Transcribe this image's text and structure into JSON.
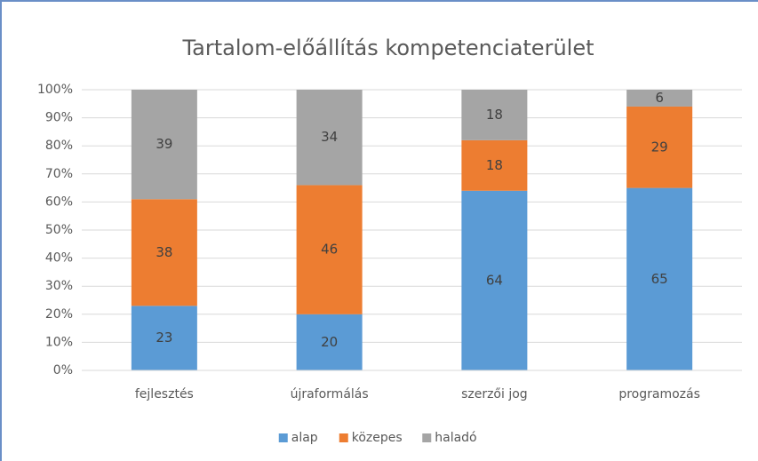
{
  "chart_data": {
    "type": "stacked_bar",
    "title": "Tartalom-előállítás kompetenciaterület",
    "categories": [
      "fejlesztés",
      "újraformálás",
      "szerzői jog",
      "programozás"
    ],
    "series": [
      {
        "name": "alap",
        "color": "#5b9bd5",
        "values": [
          23,
          20,
          64,
          65
        ]
      },
      {
        "name": "közepes",
        "color": "#ed7d31",
        "values": [
          38,
          46,
          18,
          29
        ]
      },
      {
        "name": "haladó",
        "color": "#a5a5a5",
        "values": [
          39,
          34,
          18,
          6
        ]
      }
    ],
    "ylim": [
      0,
      100
    ],
    "yticks": [
      {
        "value": 0,
        "label": "0%"
      },
      {
        "value": 10,
        "label": "10%"
      },
      {
        "value": 20,
        "label": "20%"
      },
      {
        "value": 30,
        "label": "30%"
      },
      {
        "value": 40,
        "label": "40%"
      },
      {
        "value": 50,
        "label": "50%"
      },
      {
        "value": 60,
        "label": "60%"
      },
      {
        "value": 70,
        "label": "70%"
      },
      {
        "value": 80,
        "label": "80%"
      },
      {
        "value": 90,
        "label": "90%"
      },
      {
        "value": 100,
        "label": "100%"
      }
    ],
    "grid": true,
    "legend": "bottom"
  }
}
